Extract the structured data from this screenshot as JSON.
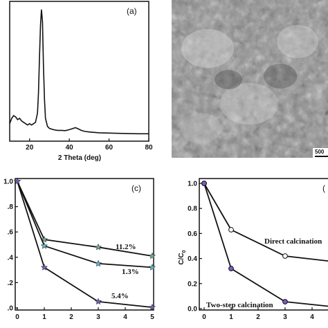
{
  "chart_data": [
    {
      "type": "line",
      "panel": "(a)",
      "xlabel": "2 Theta (deg)",
      "ylabel": "",
      "xlim": [
        10,
        80
      ],
      "xticks": [
        20,
        40,
        60,
        80
      ],
      "x": [
        10,
        11,
        12,
        13,
        14,
        15,
        16,
        17,
        18,
        19,
        20,
        21,
        22,
        23,
        24,
        24.5,
        25,
        25.5,
        26,
        26.5,
        27,
        27.5,
        28,
        29,
        30,
        32,
        34,
        36,
        38,
        40,
        42,
        43,
        44,
        46,
        48,
        50,
        55,
        60,
        65,
        70,
        75,
        80
      ],
      "y": [
        0.12,
        0.16,
        0.18,
        0.17,
        0.15,
        0.16,
        0.14,
        0.13,
        0.12,
        0.11,
        0.12,
        0.11,
        0.12,
        0.13,
        0.2,
        0.35,
        0.62,
        0.85,
        0.97,
        0.88,
        0.55,
        0.3,
        0.16,
        0.1,
        0.085,
        0.075,
        0.07,
        0.07,
        0.068,
        0.075,
        0.085,
        0.09,
        0.085,
        0.07,
        0.062,
        0.058,
        0.052,
        0.05,
        0.048,
        0.046,
        0.045,
        0.045
      ]
    },
    {
      "type": "line",
      "panel": "(c)",
      "xlabel": "",
      "ylabel": "",
      "xlim": [
        0,
        5
      ],
      "ylim": [
        0,
        1.0
      ],
      "xticks": [
        0,
        1,
        2,
        3,
        4,
        5
      ],
      "yticks": [
        0.0,
        0.2,
        0.4,
        0.6,
        0.8,
        1.0
      ],
      "ytick_labels": [
        ".0",
        ".2",
        ".4",
        ".6",
        ".8",
        "1.0"
      ],
      "series": [
        {
          "name": "11.2%",
          "x": [
            0,
            1,
            3,
            5
          ],
          "values": [
            1.0,
            0.54,
            0.48,
            0.41
          ],
          "color": "#6fae8c",
          "marker": "star"
        },
        {
          "name": "1.3%",
          "x": [
            0,
            1,
            3,
            5
          ],
          "values": [
            1.0,
            0.49,
            0.35,
            0.32
          ],
          "color": "#5bb8d6",
          "marker": "star"
        },
        {
          "name": "5.4%",
          "x": [
            0,
            1,
            3,
            5
          ],
          "values": [
            1.0,
            0.32,
            0.05,
            0.005
          ],
          "color": "#7b5bc4",
          "marker": "star"
        }
      ]
    },
    {
      "type": "line",
      "panel": "(",
      "xlabel": "",
      "ylabel": "C/C",
      "ylabel_sub": "0",
      "xlim": [
        0,
        5
      ],
      "ylim": [
        0,
        1.0
      ],
      "xticks": [
        0,
        1,
        2,
        3,
        4
      ],
      "yticks": [
        0.0,
        0.2,
        0.4,
        0.6,
        0.8,
        1.0
      ],
      "ytick_labels": [
        "0.0",
        "0.2",
        "0.4",
        "0.6",
        "0.8",
        "1.0"
      ],
      "series": [
        {
          "name": "Direct calcination",
          "x": [
            0,
            1,
            3,
            5
          ],
          "values": [
            1.0,
            0.63,
            0.42,
            0.37
          ],
          "color": "#ffffff",
          "marker": "circle"
        },
        {
          "name": "Two-step calcination",
          "x": [
            0,
            1,
            3,
            5
          ],
          "values": [
            1.0,
            0.32,
            0.055,
            0.01
          ],
          "color": "#7b5bc4",
          "marker": "circle"
        }
      ]
    }
  ],
  "sem_panel": {
    "scale_bar_label": "500"
  }
}
